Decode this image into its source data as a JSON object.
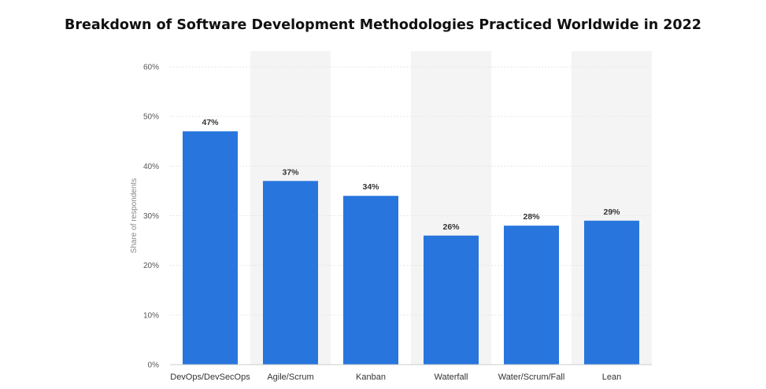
{
  "chart_data": {
    "type": "bar",
    "title": "Breakdown of Software Development Methodologies Practiced Worldwide in 2022",
    "xlabel": "",
    "ylabel": "Share of respondents",
    "categories": [
      "DevOps/DevSecOps",
      "Agile/Scrum",
      "Kanban",
      "Waterfall",
      "Water/Scrum/Fall",
      "Lean"
    ],
    "values": [
      47,
      37,
      34,
      26,
      28,
      29
    ],
    "value_labels": [
      "47%",
      "37%",
      "34%",
      "26%",
      "28%",
      "29%"
    ],
    "ylim": [
      0,
      60
    ],
    "yticks": [
      0,
      10,
      20,
      30,
      40,
      50,
      60
    ],
    "ytick_labels": [
      "0%",
      "10%",
      "20%",
      "30%",
      "40%",
      "50%",
      "60%"
    ],
    "grid": true,
    "bar_color": "#2876dd",
    "band_color": "#f4f4f4"
  }
}
